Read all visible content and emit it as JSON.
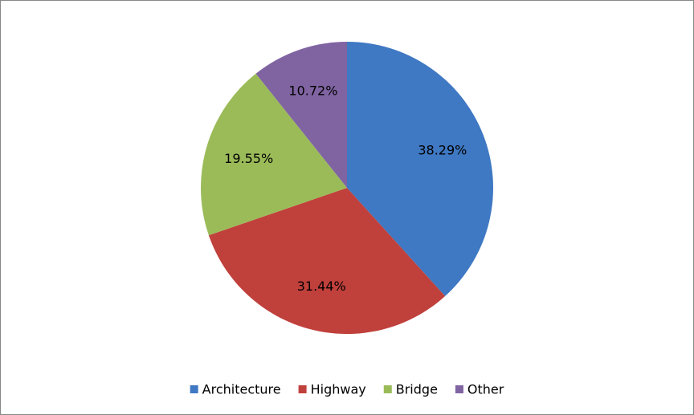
{
  "chart_data": {
    "type": "pie",
    "categories": [
      "Architecture",
      "Highway",
      "Bridge",
      "Other"
    ],
    "values": [
      38.29,
      31.44,
      19.55,
      10.72
    ],
    "value_labels": [
      "38.29%",
      "31.44%",
      "19.55%",
      "10.72%"
    ],
    "colors": [
      "#3f78c3",
      "#c0403c",
      "#9bbb59",
      "#8064a2"
    ],
    "legend": "bottom"
  }
}
